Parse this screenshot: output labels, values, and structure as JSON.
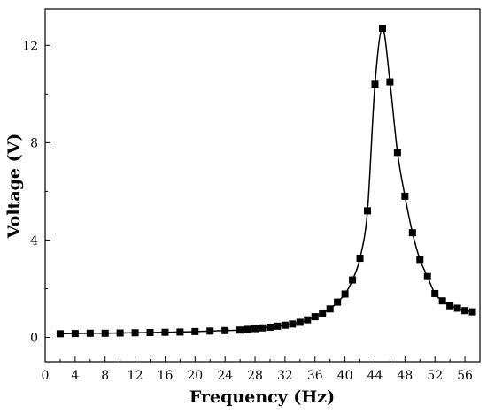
{
  "chart_data": {
    "type": "line",
    "title": "",
    "xlabel": "Frequency (Hz)",
    "ylabel": "Voltage (V)",
    "xlim": [
      0,
      58
    ],
    "ylim": [
      -1,
      13.5
    ],
    "xticks": [
      0,
      4,
      8,
      12,
      16,
      20,
      24,
      28,
      32,
      36,
      40,
      44,
      48,
      52,
      56
    ],
    "yticks": [
      0,
      4,
      8,
      12
    ],
    "grid": false,
    "legend": "none",
    "marker": "square",
    "series": [
      {
        "x": [
          2,
          4,
          6,
          8,
          10,
          12,
          14,
          16,
          18,
          20,
          22,
          24,
          26,
          27,
          28,
          29,
          30,
          31,
          32,
          33,
          34,
          35,
          36,
          37,
          38,
          39,
          40,
          41,
          42,
          43,
          44,
          45,
          46,
          47,
          48,
          49,
          50,
          51,
          52,
          53,
          54,
          55,
          56,
          57
        ],
        "y": [
          0.15,
          0.16,
          0.17,
          0.17,
          0.18,
          0.19,
          0.2,
          0.21,
          0.22,
          0.24,
          0.26,
          0.28,
          0.3,
          0.33,
          0.36,
          0.39,
          0.42,
          0.46,
          0.5,
          0.55,
          0.62,
          0.72,
          0.85,
          1.0,
          1.17,
          1.45,
          1.78,
          2.36,
          3.25,
          5.2,
          10.4,
          12.7,
          10.5,
          7.6,
          5.8,
          4.3,
          3.2,
          2.5,
          1.8,
          1.5,
          1.3,
          1.2,
          1.1,
          1.05
        ]
      }
    ],
    "color": "#000000"
  }
}
